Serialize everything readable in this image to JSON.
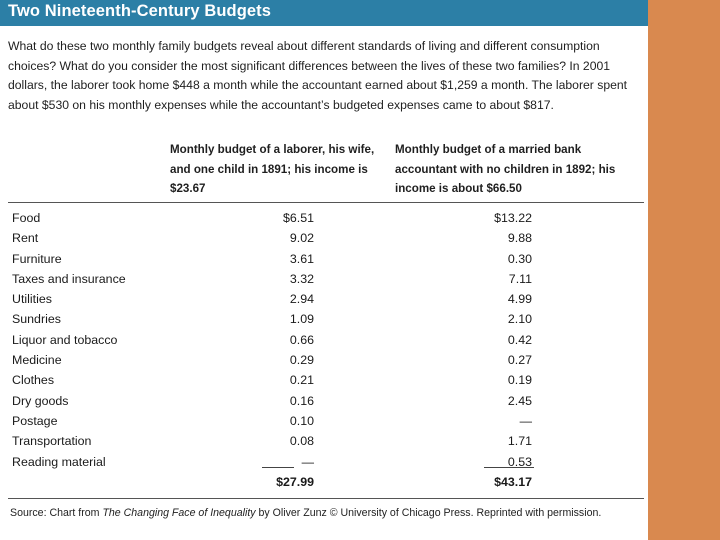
{
  "header": {
    "title": "Two Nineteenth-Century Budgets"
  },
  "intro": "What do these two monthly family budgets reveal about different standards of living and different consumption choices? What do you consider the most significant differences between the lives of these two families? In 2001 dollars, the laborer took home $448 a month while the accountant earned about $1,259 a month. The laborer spent about $530 on his monthly expenses while the accountant’s budgeted expenses came to about $817.",
  "columns": {
    "laborer": "Monthly budget of a laborer, his wife, and one child in 1891; his income is $23.67",
    "accountant": "Monthly budget of a married bank accountant with no children in 1892; his income is about $66.50"
  },
  "rows": [
    {
      "label": "Food",
      "laborer": "$6.51",
      "accountant": "$13.22"
    },
    {
      "label": "Rent",
      "laborer": "9.02",
      "accountant": "9.88"
    },
    {
      "label": "Furniture",
      "laborer": "3.61",
      "accountant": "0.30"
    },
    {
      "label": "Taxes and insurance",
      "laborer": "3.32",
      "accountant": "7.11"
    },
    {
      "label": "Utilities",
      "laborer": "2.94",
      "accountant": "4.99"
    },
    {
      "label": "Sundries",
      "laborer": "1.09",
      "accountant": "2.10"
    },
    {
      "label": "Liquor and tobacco",
      "laborer": "0.66",
      "accountant": "0.42"
    },
    {
      "label": "Medicine",
      "laborer": "0.29",
      "accountant": "0.27"
    },
    {
      "label": "Clothes",
      "laborer": "0.21",
      "accountant": "0.19"
    },
    {
      "label": "Dry goods",
      "laborer": "0.16",
      "accountant": "2.45"
    },
    {
      "label": "Postage",
      "laborer": "0.10",
      "accountant": "—"
    },
    {
      "label": "Transportation",
      "laborer": "0.08",
      "accountant": "1.71"
    },
    {
      "label": "Reading material",
      "laborer": "—",
      "accountant": "0.53"
    }
  ],
  "totals": {
    "laborer": "$27.99",
    "accountant": "$43.17"
  },
  "source": {
    "prefix": "Source: Chart from ",
    "book": "The Changing Face of Inequality",
    "suffix": " by Oliver Zunz © University of Chicago Press. Reprinted with permission."
  },
  "colors": {
    "header": "#2c7fa6",
    "accent": "#d9894f"
  }
}
